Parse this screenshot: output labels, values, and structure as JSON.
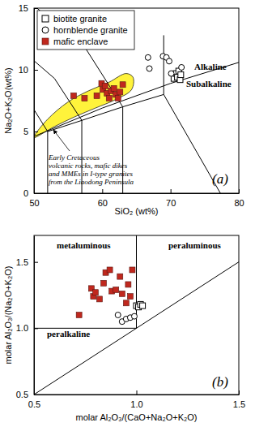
{
  "chart_data": [
    {
      "type": "scatter",
      "panel_label": "(a)",
      "x_label": "SiO₂ (wt%)",
      "y_label": "Na₂O+K₂O(wt%)",
      "xlim": [
        50,
        80
      ],
      "xticks": [
        50,
        60,
        70,
        80
      ],
      "ylim": [
        0,
        15
      ],
      "yticks": [
        0,
        5,
        10,
        15
      ],
      "legend": "top-left",
      "annotations": [
        "Alkaline",
        "Subalkaline"
      ],
      "field": {
        "label": [
          "Early Cretaceous",
          "volcanic rocks, mafic dikes",
          "and MMEs in I-type granites",
          "from the Liaodong Peninsula"
        ],
        "color": "#fff33b",
        "x": [
          50,
          52,
          55,
          58,
          61,
          63.5,
          64.5,
          64.3,
          62,
          59,
          56,
          53,
          50
        ],
        "y": [
          4.6,
          6.0,
          7.4,
          8.3,
          9.0,
          9.7,
          9.4,
          8.4,
          7.6,
          6.9,
          6.2,
          5.4,
          4.5
        ]
      },
      "boundary_lines": [
        {
          "x": [
            52,
            52,
            57,
            63,
            69
          ],
          "y": [
            0,
            5,
            5.9,
            7,
            8
          ]
        },
        {
          "x": [
            57,
            57
          ],
          "y": [
            0,
            5.9
          ]
        },
        {
          "x": [
            63,
            63
          ],
          "y": [
            0,
            7
          ]
        },
        {
          "x": [
            77.3,
            69
          ],
          "y": [
            0,
            8
          ]
        },
        {
          "x": [
            52,
            49.4
          ],
          "y": [
            5,
            7.3
          ]
        },
        {
          "x": [
            57,
            53,
            48.4
          ],
          "y": [
            5.9,
            9.3,
            11.5
          ]
        },
        {
          "x": [
            63,
            57.6,
            52.5,
            48.4
          ],
          "y": [
            7,
            11.7,
            14,
            16
          ]
        },
        {
          "x": [
            69,
            69
          ],
          "y": [
            8,
            12.8
          ]
        },
        {
          "x": [
            50,
            60,
            70,
            80
          ],
          "y": [
            4.6,
            6.9,
            8.9,
            10.6
          ]
        }
      ],
      "series": [
        {
          "name": "biotite granite",
          "marker": "square-open",
          "color": "#000000",
          "x": [
            70.5,
            70.8,
            71.0,
            71.2,
            71.4,
            71.5
          ],
          "values": [
            9.3,
            9.7,
            9.4,
            9.9,
            9.2,
            9.6
          ]
        },
        {
          "name": "hornblende granite",
          "marker": "circle-open",
          "color": "#000000",
          "x": [
            66.7,
            66.9,
            68.9,
            69.4,
            69.8,
            70.1,
            71.6
          ],
          "values": [
            11.0,
            10.1,
            11.1,
            11.0,
            10.7,
            9.7,
            10.2
          ]
        },
        {
          "name": "mafic enclave",
          "marker": "square",
          "color": "#c0281e",
          "x": [
            55.8,
            57.4,
            59.2,
            59.9,
            60.1,
            60.4,
            60.7,
            61.0,
            61.3,
            61.7,
            62.0,
            62.3,
            62.6,
            63.0
          ],
          "values": [
            7.9,
            7.7,
            7.9,
            8.9,
            8.4,
            8.7,
            8.1,
            7.7,
            8.3,
            8.5,
            8.0,
            7.7,
            8.2,
            8.8
          ]
        }
      ]
    },
    {
      "type": "scatter",
      "panel_label": "(b)",
      "x_label": "molar Al₂O₃/(CaO+Na₂O+K₂O)",
      "y_label": "molar Al₂O₃/(Na₂O+K₂O)",
      "xlim": [
        0.5,
        1.5
      ],
      "xticks": [
        0.5,
        {
          "value": 1,
          "label": "1.0"
        },
        1.5
      ],
      "ylim": [
        0.5,
        1.7
      ],
      "yticks": [
        0.5,
        {
          "value": 1,
          "label": "1.0"
        },
        1.5
      ],
      "annotations": [
        "metaluminous",
        "peraluminous",
        "peralkaline"
      ],
      "boundary_lines": [
        {
          "x": [
            1,
            1
          ],
          "y": [
            1,
            1.7
          ]
        },
        {
          "x": [
            0.5,
            1
          ],
          "y": [
            1,
            1
          ]
        },
        {
          "x": [
            0.5,
            1.5
          ],
          "y": [
            0.5,
            1.5
          ]
        }
      ],
      "series": [
        {
          "marker": "square-open",
          "color": "#000000",
          "x": [
            1.0,
            1.01,
            1.02,
            1.03
          ],
          "values": [
            1.17,
            1.16,
            1.18,
            1.17
          ]
        },
        {
          "marker": "circle-open",
          "color": "#000000",
          "x": [
            0.91,
            0.93,
            0.95,
            0.97,
            0.99
          ],
          "values": [
            1.1,
            1.05,
            1.07,
            1.08,
            1.09
          ]
        },
        {
          "marker": "square",
          "color": "#c0281e",
          "x": [
            0.72,
            0.78,
            0.79,
            0.8,
            0.82,
            0.84,
            0.85,
            0.87,
            0.88,
            0.9,
            0.92,
            0.93,
            0.95,
            0.96,
            0.97,
            0.98
          ],
          "values": [
            1.1,
            1.3,
            1.24,
            1.27,
            1.22,
            1.34,
            1.42,
            1.44,
            1.28,
            1.29,
            1.39,
            1.26,
            1.19,
            1.33,
            1.24,
            1.44
          ]
        }
      ]
    }
  ]
}
